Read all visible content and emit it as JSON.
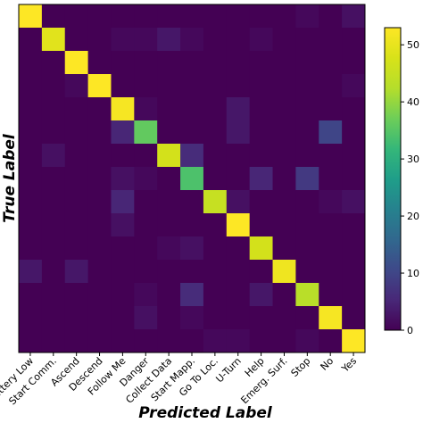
{
  "chart_data": {
    "type": "heatmap",
    "title": "",
    "xlabel": "Predicted Label",
    "ylabel": "True Label",
    "categories": [
      "Battery Low",
      "Start Comm.",
      "Ascend",
      "Descend",
      "Follow Me",
      "Danger",
      "Collect Data",
      "Start Mapp.",
      "Go To Loc.",
      "U-Turn",
      "Help",
      "Emerg. Surf.",
      "Stop",
      "No",
      "Yes"
    ],
    "colorbar": {
      "min": 0,
      "max": 53,
      "ticks": [
        0,
        10,
        20,
        30,
        40,
        50
      ],
      "colormap": "viridis"
    },
    "matrix": [
      [
        53,
        0,
        0,
        0,
        0,
        0,
        0,
        0,
        0,
        0,
        0,
        0,
        1,
        0,
        2
      ],
      [
        0,
        49,
        0,
        0,
        1,
        1,
        3,
        1,
        0,
        0,
        1,
        0,
        0,
        0,
        0
      ],
      [
        0,
        0,
        53,
        0,
        0,
        0,
        0,
        0,
        0,
        0,
        0,
        0,
        0,
        0,
        0
      ],
      [
        0,
        0,
        1,
        53,
        0,
        0,
        0,
        0,
        0,
        0,
        0,
        0,
        0,
        0,
        1
      ],
      [
        0,
        0,
        0,
        0,
        52,
        1,
        0,
        0,
        0,
        3,
        0,
        0,
        0,
        0,
        0
      ],
      [
        0,
        0,
        0,
        0,
        5,
        36,
        0,
        0,
        0,
        3,
        0,
        0,
        0,
        10,
        0
      ],
      [
        0,
        2,
        0,
        0,
        0,
        0,
        47,
        6,
        0,
        0,
        0,
        0,
        0,
        0,
        0
      ],
      [
        0,
        0,
        0,
        0,
        2,
        1,
        0,
        34,
        0,
        0,
        5,
        0,
        8,
        0,
        0
      ],
      [
        0,
        0,
        0,
        0,
        5,
        0,
        0,
        0,
        45,
        2,
        0,
        0,
        0,
        1,
        2
      ],
      [
        0,
        0,
        0,
        0,
        2,
        0,
        0,
        0,
        0,
        53,
        0,
        0,
        0,
        0,
        0
      ],
      [
        0,
        0,
        0,
        0,
        0,
        0,
        1,
        2,
        0,
        0,
        47,
        0,
        0,
        0,
        0
      ],
      [
        3,
        0,
        3,
        0,
        0,
        0,
        0,
        0,
        0,
        0,
        0,
        51,
        0,
        0,
        0
      ],
      [
        0,
        0,
        0,
        0,
        0,
        1,
        0,
        6,
        0,
        0,
        3,
        0,
        43,
        0,
        0
      ],
      [
        0,
        0,
        0,
        0,
        0,
        2,
        0,
        1,
        0,
        0,
        0,
        0,
        0,
        52,
        0
      ],
      [
        0,
        0,
        0,
        0,
        0,
        0,
        0,
        0,
        1,
        1,
        0,
        0,
        1,
        0,
        53
      ]
    ]
  }
}
